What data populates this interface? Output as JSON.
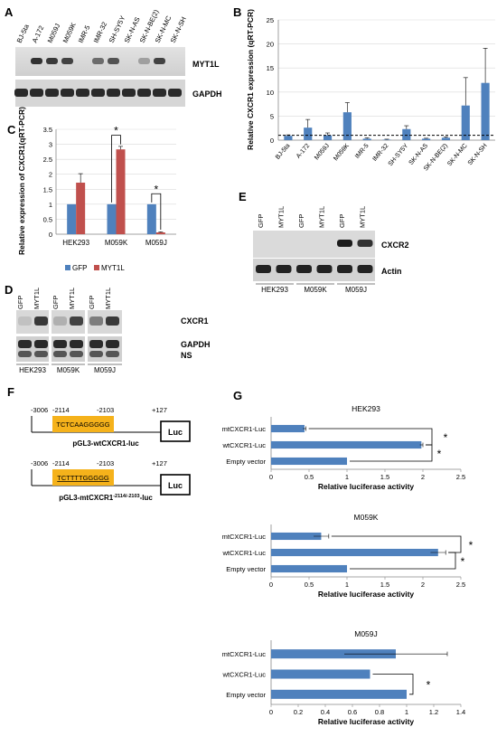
{
  "panels": {
    "A": {
      "letter": "A",
      "lanes": [
        "BJ-5ta",
        "A-172",
        "M059J",
        "M059K",
        "IMR-5",
        "IMR-32",
        "SH-SY5Y",
        "SK-N-AS",
        "SK-N-BE(2)",
        "SK-N-MC",
        "SK-N-SH"
      ],
      "bands": [
        "MYT1L",
        "GAPDH"
      ],
      "myt1l_intensity": [
        0.05,
        0.95,
        0.9,
        0.85,
        0.05,
        0.6,
        0.75,
        0.05,
        0.3,
        0.85,
        0.1
      ]
    },
    "B": {
      "letter": "B"
    },
    "C": {
      "letter": "C"
    },
    "D": {
      "letter": "D",
      "groups": [
        "HEK293",
        "M059K",
        "M059J"
      ],
      "lane_labels": [
        "GFP",
        "MYT1L"
      ],
      "bands": [
        "CXCR1",
        "GAPDH",
        "NS"
      ]
    },
    "E": {
      "letter": "E",
      "groups": [
        "HEK293",
        "M059K",
        "M059J"
      ],
      "lane_labels": [
        "GFP",
        "MYT1L"
      ],
      "bands": [
        "CXCR2",
        "Actin"
      ],
      "cxcr2_intensity": [
        0,
        0,
        0,
        0,
        0.95,
        0.8
      ]
    },
    "F": {
      "letter": "F",
      "construct1": {
        "start": "-3006",
        "a": "-2114",
        "b": "-2103",
        "end": "+127",
        "seq": "TCTCAAGGGGG",
        "reporter": "Luc",
        "name": "pGL3-wtCXCR1-luc"
      },
      "construct2": {
        "start": "-3006",
        "a": "-2114",
        "b": "-2103",
        "end": "+127",
        "seq": "TCTTTTGGGGG",
        "reporter": "Luc",
        "name": "pGL3-mtCXCR1",
        "sup": "-2114/-2103",
        "suffix": "-luc"
      }
    },
    "G": {
      "letter": "G"
    }
  },
  "sig_marker": "*",
  "chart_data": [
    {
      "panel": "B",
      "type": "bar",
      "ylabel": "Relative CXCR1 expression (qRT-PCR)",
      "categories": [
        "BJ-5ta",
        "A-172",
        "M059J",
        "M059K",
        "IMR-5",
        "IMR-32",
        "SH-SY5Y",
        "SK-N-AS",
        "SK-N-BE(2)",
        "SK-N-MC",
        "SK-N-SH"
      ],
      "values": [
        0.9,
        2.6,
        1.0,
        5.8,
        0.3,
        0.1,
        2.3,
        0.3,
        0.5,
        7.2,
        11.9
      ],
      "errors": [
        0.2,
        1.7,
        0.5,
        2.0,
        0.2,
        0.1,
        0.7,
        0.1,
        0.2,
        5.8,
        7.2
      ],
      "reference_line": 1,
      "ylim": [
        0,
        25
      ],
      "yticks": [
        0,
        5,
        10,
        15,
        20,
        25
      ],
      "grid": true,
      "color": "#4f81bd"
    },
    {
      "panel": "C",
      "type": "bar",
      "ylabel": "Relative expression of CXCR1(qRT-PCR)",
      "categories": [
        "HEK293",
        "M059K",
        "M059J"
      ],
      "series": [
        {
          "name": "GFP",
          "values": [
            1,
            1,
            1
          ],
          "errors": [
            0,
            0,
            0
          ],
          "color": "#4f81bd"
        },
        {
          "name": "MYT1L",
          "values": [
            1.72,
            2.83,
            0.06
          ],
          "errors": [
            0.3,
            0.1,
            0.02
          ],
          "color": "#c0504d"
        }
      ],
      "ylim": [
        0,
        3.5
      ],
      "yticks": [
        0,
        0.5,
        1,
        1.5,
        2,
        2.5,
        3,
        3.5
      ],
      "grid": true,
      "legend": "bottom"
    },
    {
      "panel": "G",
      "title": "HEK293",
      "type": "bar",
      "orientation": "horizontal",
      "categories": [
        "mtCXCR1-Luc",
        "wtCXCR1-Luc",
        "Empty vector"
      ],
      "values": [
        0.44,
        1.98,
        1.0
      ],
      "errors": [
        0.02,
        0.02,
        0.0
      ],
      "xlabel": "Relative luciferase activity",
      "xlim": [
        0,
        2.5
      ],
      "xticks": [
        0,
        0.5,
        1,
        1.5,
        2,
        2.5
      ],
      "color": "#4f81bd"
    },
    {
      "panel": "G",
      "title": "M059K",
      "type": "bar",
      "orientation": "horizontal",
      "categories": [
        "mtCXCR1-Luc",
        "wtCXCR1-Luc",
        "Empty vector"
      ],
      "values": [
        0.66,
        2.2,
        1.0
      ],
      "errors": [
        0.1,
        0.1,
        0.0
      ],
      "xlabel": "Relative luciferase activity",
      "xlim": [
        0,
        2.5
      ],
      "xticks": [
        0,
        0.5,
        1,
        1.5,
        2,
        2.5
      ],
      "color": "#4f81bd"
    },
    {
      "panel": "G",
      "title": "M059J",
      "type": "bar",
      "orientation": "horizontal",
      "categories": [
        "mtCXCR1-Luc",
        "wtCXCR1-Luc",
        "Empty vector"
      ],
      "values": [
        0.92,
        0.73,
        1.0
      ],
      "errors": [
        0.38,
        0.0,
        0.0
      ],
      "xlabel": "Relative luciferase activity",
      "xlim": [
        0,
        1.4
      ],
      "xticks": [
        0,
        0.2,
        0.4,
        0.6,
        0.8,
        1,
        1.2,
        1.4
      ],
      "color": "#4f81bd"
    }
  ]
}
